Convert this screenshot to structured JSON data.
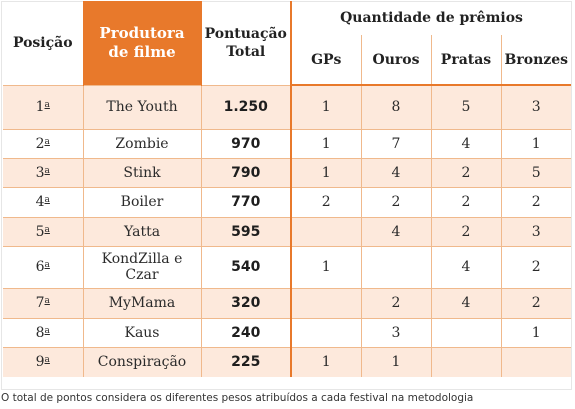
{
  "header": {
    "position": "Posição",
    "producer_line1": "Produtora",
    "producer_line2": "de filme",
    "score_line1": "Pontuação",
    "score_line2": "Total",
    "awards_group": "Quantidade de prêmios",
    "gps": "GPs",
    "gold": "Ouros",
    "silver": "Pratas",
    "bronze": "Bronzes"
  },
  "rows": [
    {
      "pos": "1",
      "ord": "a",
      "name": "The Youth",
      "points": "1.250",
      "gps": "1",
      "gold": "8",
      "silver": "5",
      "bronze": "3"
    },
    {
      "pos": "2",
      "ord": "a",
      "name": "Zombie",
      "points": "970",
      "gps": "1",
      "gold": "7",
      "silver": "4",
      "bronze": "1"
    },
    {
      "pos": "3",
      "ord": "a",
      "name": "Stink",
      "points": "790",
      "gps": "1",
      "gold": "4",
      "silver": "2",
      "bronze": "5"
    },
    {
      "pos": "4",
      "ord": "a",
      "name": "Boiler",
      "points": "770",
      "gps": "2",
      "gold": "2",
      "silver": "2",
      "bronze": "2"
    },
    {
      "pos": "5",
      "ord": "a",
      "name": "Yatta",
      "points": "595",
      "gps": "",
      "gold": "4",
      "silver": "2",
      "bronze": "3"
    },
    {
      "pos": "6",
      "ord": "a",
      "name_line1": "KondZilla e",
      "name_line2": "Czar",
      "points": "540",
      "gps": "1",
      "gold": "",
      "silver": "4",
      "bronze": "2"
    },
    {
      "pos": "7",
      "ord": "a",
      "name": "MyMama",
      "points": "320",
      "gps": "",
      "gold": "2",
      "silver": "4",
      "bronze": "2"
    },
    {
      "pos": "8",
      "ord": "a",
      "name": "Kaus",
      "points": "240",
      "gps": "",
      "gold": "3",
      "silver": "",
      "bronze": "1"
    },
    {
      "pos": "9",
      "ord": "a",
      "name": "Conspiração",
      "points": "225",
      "gps": "1",
      "gold": "1",
      "silver": "",
      "bronze": ""
    }
  ],
  "footnote": "O total de pontos considera os diferentes pesos atribuídos a cada festival na metodologia",
  "colors": {
    "accent": "#e8792b",
    "row_shade": "#fde9dc",
    "grid_line": "#f0b98c"
  }
}
